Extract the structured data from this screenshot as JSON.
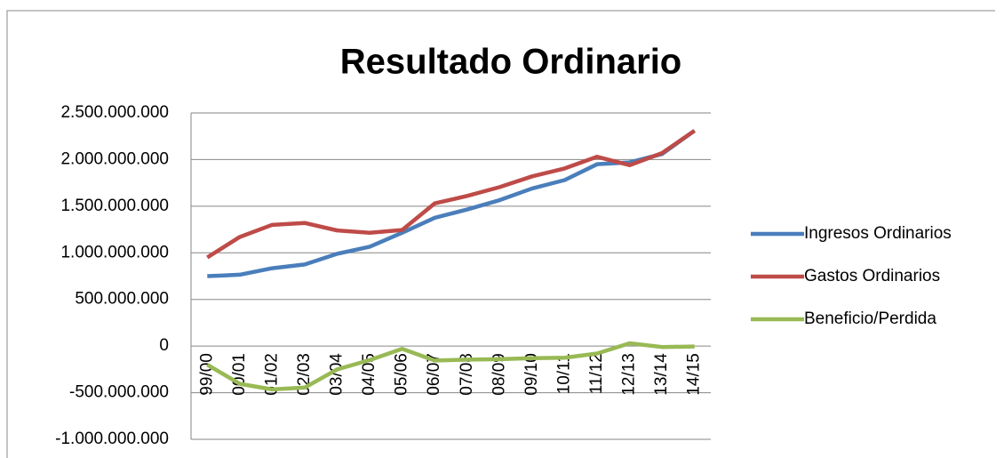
{
  "chart_data": {
    "type": "line",
    "title": "Resultado Ordinario",
    "categories": [
      "99/00",
      "00/01",
      "01/02",
      "02/03",
      "03/04",
      "04/05",
      "05/06",
      "06/07",
      "07/08",
      "08/09",
      "09/10",
      "10/11",
      "11/12",
      "12/13",
      "13/14",
      "14/15"
    ],
    "series": [
      {
        "name": "Ingresos Ordinarios",
        "color": "#4a7ebb",
        "values": [
          750000000,
          765000000,
          835000000,
          875000000,
          990000000,
          1065000000,
          1215000000,
          1375000000,
          1465000000,
          1565000000,
          1690000000,
          1780000000,
          1950000000,
          1970000000,
          2060000000,
          2310000000
        ]
      },
      {
        "name": "Gastos Ordinarios",
        "color": "#be4b48",
        "values": [
          950000000,
          1170000000,
          1300000000,
          1320000000,
          1240000000,
          1215000000,
          1245000000,
          1530000000,
          1610000000,
          1705000000,
          1820000000,
          1905000000,
          2030000000,
          1940000000,
          2070000000,
          2310000000
        ]
      },
      {
        "name": "Beneficio/Perdida",
        "color": "#98b954",
        "values": [
          -200000000,
          -405000000,
          -465000000,
          -445000000,
          -250000000,
          -150000000,
          -30000000,
          -155000000,
          -145000000,
          -140000000,
          -130000000,
          -125000000,
          -80000000,
          30000000,
          -10000000,
          -5000000
        ]
      }
    ],
    "ylim": [
      -1000000000,
      2500000000
    ],
    "yticks": [
      {
        "value": -1000000000,
        "label": "-1.000.000.000"
      },
      {
        "value": -500000000,
        "label": "-500.000.000"
      },
      0,
      {
        "value": 500000000,
        "label": "500.000.000"
      },
      {
        "value": 1000000000,
        "label": "1.000.000.000"
      },
      {
        "value": 1500000000,
        "label": "1.500.000.000"
      },
      {
        "value": 2000000000,
        "label": "2.000.000.000"
      },
      {
        "value": 2500000000,
        "label": "2.500.000.000"
      }
    ],
    "grid": true,
    "legend": "right"
  }
}
